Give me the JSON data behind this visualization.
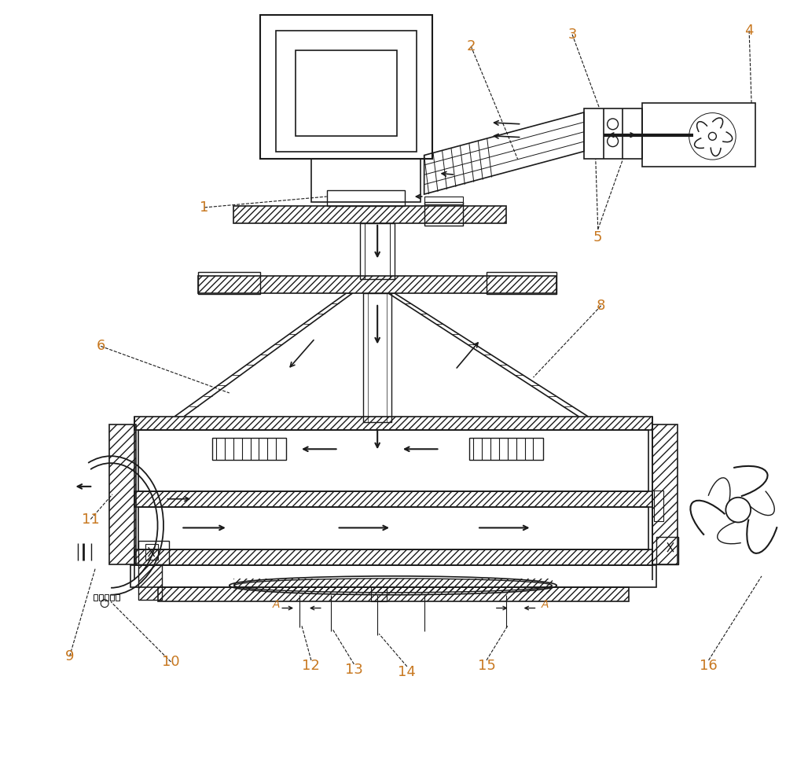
{
  "bg_color": "#ffffff",
  "line_color": "#1a1a1a",
  "label_color": "#c87820",
  "figsize": [
    10.0,
    9.77
  ],
  "dpi": 100
}
